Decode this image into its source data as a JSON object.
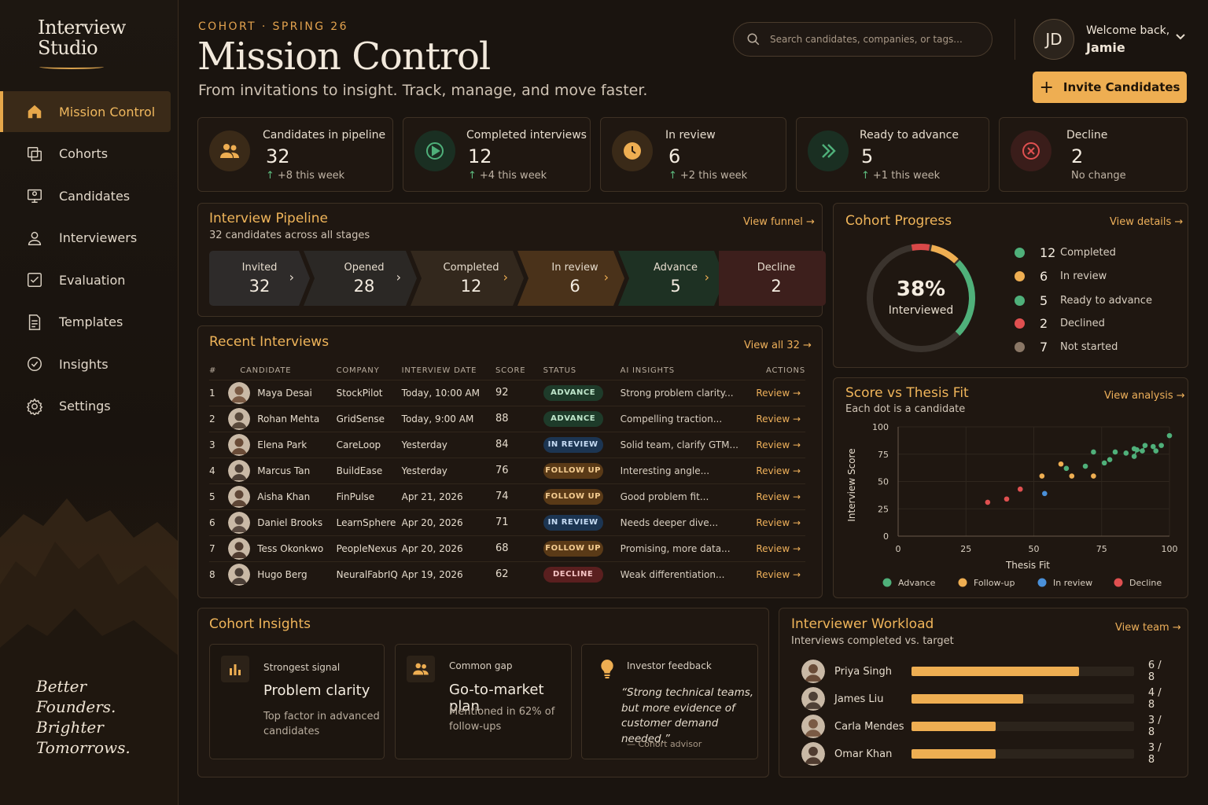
{
  "app": {
    "logo_line1": "Interview",
    "logo_line2": "Studio",
    "tagline": [
      "Better",
      "Founders.",
      "Brighter",
      "Tomorrows."
    ]
  },
  "sidebar": {
    "items": [
      {
        "label": "Mission Control",
        "icon": "home-icon",
        "active": true
      },
      {
        "label": "Cohorts",
        "icon": "cohorts-icon"
      },
      {
        "label": "Candidates",
        "icon": "candidates-icon"
      },
      {
        "label": "Interviewers",
        "icon": "interviewers-icon"
      },
      {
        "label": "Evaluation",
        "icon": "evaluation-icon"
      },
      {
        "label": "Templates",
        "icon": "templates-icon"
      },
      {
        "label": "Insights",
        "icon": "insights-icon"
      },
      {
        "label": "Settings",
        "icon": "gear-icon"
      }
    ]
  },
  "header": {
    "eyebrow": "COHORT · SPRING 26",
    "title": "Mission Control",
    "subtitle": "From invitations to insight. Track, manage, and move faster.",
    "search_placeholder": "Search candidates, companies, or tags...",
    "user_initials": "JD",
    "welcome": "Welcome back,",
    "user_name": "Jamie",
    "invite_label": "Invite Candidates"
  },
  "stats": [
    {
      "label": "Candidates in pipeline",
      "value": "32",
      "delta": "+8 this week",
      "color": "#eeae52"
    },
    {
      "label": "Completed interviews",
      "value": "12",
      "delta": "+4 this week",
      "color": "#4fb07a"
    },
    {
      "label": "In review",
      "value": "6",
      "delta": "+2 this week",
      "color": "#eeae52"
    },
    {
      "label": "Ready to advance",
      "value": "5",
      "delta": "+1 this week",
      "color": "#4fb07a"
    },
    {
      "label": "Decline",
      "value": "2",
      "delta": "No change",
      "color": "#e05050"
    }
  ],
  "pipeline": {
    "title": "Interview Pipeline",
    "subtitle": "32 candidates across all stages",
    "link": "View funnel →",
    "stages": [
      {
        "label": "Invited",
        "value": "32"
      },
      {
        "label": "Opened",
        "value": "28"
      },
      {
        "label": "Completed",
        "value": "12"
      },
      {
        "label": "In review",
        "value": "6"
      },
      {
        "label": "Advance",
        "value": "5"
      },
      {
        "label": "Decline",
        "value": "2"
      }
    ]
  },
  "recent": {
    "title": "Recent Interviews",
    "link": "View all 32 →",
    "columns": [
      "#",
      "CANDIDATE",
      "COMPANY",
      "INTERVIEW DATE",
      "SCORE",
      "STATUS",
      "AI INSIGHTS",
      "ACTIONS"
    ],
    "rows": [
      {
        "n": "1",
        "name": "Maya Desai",
        "company": "StockPilot",
        "date": "Today, 10:00 AM",
        "score": "92",
        "status": "ADVANCE",
        "insight": "Strong problem clarity...",
        "action": "Review →"
      },
      {
        "n": "2",
        "name": "Rohan Mehta",
        "company": "GridSense",
        "date": "Today, 9:00 AM",
        "score": "88",
        "status": "ADVANCE",
        "insight": "Compelling traction...",
        "action": "Review →"
      },
      {
        "n": "3",
        "name": "Elena Park",
        "company": "CareLoop",
        "date": "Yesterday",
        "score": "84",
        "status": "IN REVIEW",
        "insight": "Solid team, clarify GTM...",
        "action": "Review →"
      },
      {
        "n": "4",
        "name": "Marcus Tan",
        "company": "BuildEase",
        "date": "Yesterday",
        "score": "76",
        "status": "FOLLOW UP",
        "insight": "Interesting angle...",
        "action": "Review →"
      },
      {
        "n": "5",
        "name": "Aisha Khan",
        "company": "FinPulse",
        "date": "Apr 21, 2026",
        "score": "74",
        "status": "FOLLOW UP",
        "insight": "Good problem fit...",
        "action": "Review →"
      },
      {
        "n": "6",
        "name": "Daniel Brooks",
        "company": "LearnSphere",
        "date": "Apr 20, 2026",
        "score": "71",
        "status": "IN REVIEW",
        "insight": "Needs deeper dive...",
        "action": "Review →"
      },
      {
        "n": "7",
        "name": "Tess Okonkwo",
        "company": "PeopleNexus",
        "date": "Apr 20, 2026",
        "score": "68",
        "status": "FOLLOW UP",
        "insight": "Promising, more data...",
        "action": "Review →"
      },
      {
        "n": "8",
        "name": "Hugo Berg",
        "company": "NeuralFabrIQ",
        "date": "Apr 19, 2026",
        "score": "62",
        "status": "DECLINE",
        "insight": "Weak differentiation...",
        "action": "Review →"
      }
    ]
  },
  "progress": {
    "title": "Cohort Progress",
    "link": "View details →",
    "percent": "38%",
    "percent_label": "Interviewed",
    "legend": [
      {
        "count": "12",
        "label": "Completed",
        "color": "#4fb07a"
      },
      {
        "count": "6",
        "label": "In review",
        "color": "#eeae52"
      },
      {
        "count": "5",
        "label": "Ready to advance",
        "color": "#4fb07a"
      },
      {
        "count": "2",
        "label": "Declined",
        "color": "#e05050"
      },
      {
        "count": "7",
        "label": "Not started",
        "color": "#8a7766"
      }
    ]
  },
  "chart_data": {
    "type": "scatter",
    "title": "Score vs Thesis Fit",
    "subtitle": "Each dot is a candidate",
    "link": "View analysis →",
    "xlabel": "Thesis Fit",
    "ylabel": "Interview Score",
    "xlim": [
      0,
      100
    ],
    "ylim": [
      0,
      100
    ],
    "xticks": [
      "0",
      "25",
      "50",
      "75",
      "100"
    ],
    "yticks": [
      "0",
      "25",
      "50",
      "75",
      "100"
    ],
    "series": [
      {
        "name": "Advance",
        "color": "#4fb07a",
        "points": [
          [
            62,
            62
          ],
          [
            69,
            64
          ],
          [
            72,
            77
          ],
          [
            76,
            67
          ],
          [
            78,
            70
          ],
          [
            80,
            77
          ],
          [
            84,
            76
          ],
          [
            87,
            73
          ],
          [
            87,
            80
          ],
          [
            88,
            79
          ],
          [
            90,
            78
          ],
          [
            91,
            83
          ],
          [
            94,
            82
          ],
          [
            95,
            78
          ],
          [
            97,
            83
          ],
          [
            100,
            92
          ]
        ]
      },
      {
        "name": "Follow-up",
        "color": "#eeae52",
        "points": [
          [
            53,
            55
          ],
          [
            60,
            66
          ],
          [
            64,
            55
          ],
          [
            72,
            55
          ]
        ]
      },
      {
        "name": "In review",
        "color": "#4a90d9",
        "points": [
          [
            54,
            39
          ]
        ]
      },
      {
        "name": "Decline",
        "color": "#e05050",
        "points": [
          [
            33,
            31
          ],
          [
            40,
            34
          ],
          [
            45,
            43
          ]
        ]
      }
    ]
  },
  "insights": {
    "title": "Cohort Insights",
    "cards": [
      {
        "label": "Strongest signal",
        "heading": "Problem clarity",
        "body": [
          "Top factor in advanced",
          "candidates"
        ]
      },
      {
        "label": "Common gap",
        "heading": "Go-to-market plan",
        "body": [
          "Mentioned in 62% of",
          "follow-ups"
        ]
      },
      {
        "label": "Investor feedback",
        "quote": [
          "“Strong technical teams,",
          "but more evidence of",
          "customer demand needed.”"
        ],
        "source": "— Cohort advisor"
      }
    ]
  },
  "workload": {
    "title": "Interviewer Workload",
    "subtitle": "Interviews completed vs. target",
    "link": "View team →",
    "rows": [
      {
        "name": "Priya Singh",
        "done": 6,
        "target": 8,
        "ratio": "6 / 8"
      },
      {
        "name": "James Liu",
        "done": 4,
        "target": 8,
        "ratio": "4 / 8"
      },
      {
        "name": "Carla Mendes",
        "done": 3,
        "target": 8,
        "ratio": "3 / 8"
      },
      {
        "name": "Omar Khan",
        "done": 3,
        "target": 8,
        "ratio": "3 / 8"
      }
    ]
  }
}
